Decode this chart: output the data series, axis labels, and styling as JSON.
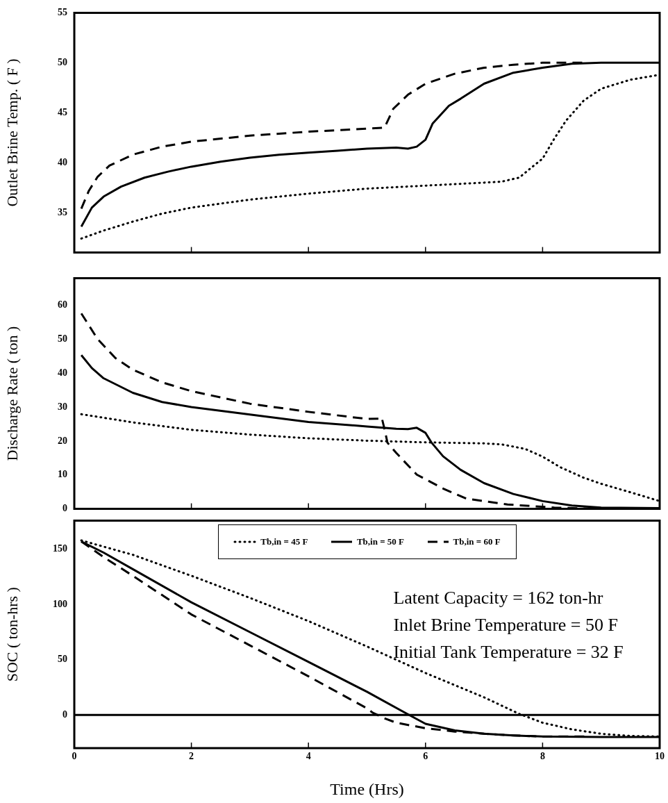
{
  "chart_data": [
    {
      "type": "line",
      "ylabel": "Outlet Brine Temp. ( F )",
      "xlim": [
        0,
        10
      ],
      "xticks": [
        0,
        2,
        4,
        6,
        8,
        10
      ],
      "ylim": [
        31,
        55
      ],
      "yticks": [
        35,
        40,
        45,
        50,
        55
      ],
      "tick_labels": "y",
      "grid": false,
      "legend": false,
      "series": [
        {
          "color": "#000000",
          "line_style": "dotted",
          "x": [
            0.12,
            0.5,
            1,
            1.5,
            2,
            3,
            4,
            5,
            6,
            7,
            7.3,
            7.6,
            7.85,
            8,
            8.2,
            8.4,
            8.7,
            9,
            9.5,
            10
          ],
          "values": [
            32.4,
            33.2,
            34.1,
            34.9,
            35.5,
            36.3,
            36.9,
            37.4,
            37.7,
            38.0,
            38.1,
            38.5,
            39.7,
            40.4,
            42.4,
            44.2,
            46.2,
            47.4,
            48.3,
            48.8
          ]
        },
        {
          "color": "#000000",
          "line_style": "solid",
          "x": [
            0.12,
            0.3,
            0.5,
            0.8,
            1.2,
            1.6,
            2,
            2.5,
            3,
            3.5,
            4,
            4.5,
            5,
            5.5,
            5.7,
            5.85,
            6,
            6.12,
            6.4,
            6.6,
            7,
            7.5,
            8,
            8.5,
            9,
            10
          ],
          "values": [
            33.6,
            35.5,
            36.6,
            37.6,
            38.5,
            39.1,
            39.6,
            40.1,
            40.5,
            40.8,
            41.0,
            41.2,
            41.4,
            41.5,
            41.4,
            41.6,
            42.3,
            43.9,
            45.7,
            46.4,
            47.9,
            49.0,
            49.5,
            49.9,
            50,
            50
          ]
        },
        {
          "color": "#000000",
          "line_style": "dashed",
          "x": [
            0.12,
            0.25,
            0.4,
            0.6,
            1,
            1.5,
            2,
            3,
            4,
            5,
            5.3,
            5.45,
            5.7,
            6,
            6.5,
            7,
            7.5,
            8,
            8.75
          ],
          "values": [
            35.4,
            37.2,
            38.6,
            39.7,
            40.8,
            41.6,
            42.1,
            42.7,
            43.1,
            43.4,
            43.5,
            45.4,
            46.8,
            47.9,
            48.9,
            49.5,
            49.8,
            50.0,
            50.0
          ]
        }
      ]
    },
    {
      "type": "line",
      "ylabel": "Discharge Rate ( ton )",
      "xlim": [
        0,
        10
      ],
      "xticks": [
        0,
        2,
        4,
        6,
        8,
        10
      ],
      "ylim": [
        0,
        68
      ],
      "yticks": [
        0,
        10,
        20,
        30,
        40,
        50,
        60
      ],
      "tick_labels": "y",
      "grid": false,
      "legend": false,
      "series": [
        {
          "color": "#000000",
          "line_style": "dotted",
          "x": [
            0.12,
            1,
            2,
            3,
            4,
            5,
            6,
            7,
            7.3,
            7.7,
            8,
            8.3,
            8.7,
            9,
            9.5,
            10
          ],
          "values": [
            27.9,
            25.5,
            23.3,
            21.9,
            20.8,
            20.1,
            19.6,
            19.3,
            19.0,
            17.7,
            15.4,
            12.3,
            9.2,
            7.4,
            4.9,
            2.3
          ]
        },
        {
          "color": "#000000",
          "line_style": "solid",
          "x": [
            0.12,
            0.3,
            0.5,
            1,
            1.5,
            2,
            3,
            4,
            5,
            5.5,
            5.7,
            5.85,
            6,
            6.1,
            6.3,
            6.6,
            7,
            7.5,
            8,
            8.5,
            9,
            10
          ],
          "values": [
            45.3,
            41.5,
            38.5,
            34.2,
            31.5,
            30.0,
            27.8,
            25.6,
            24.3,
            23.6,
            23.5,
            23.9,
            22.4,
            19.6,
            15.5,
            11.5,
            7.6,
            4.4,
            2.3,
            1.0,
            0.4,
            0.2
          ]
        },
        {
          "color": "#000000",
          "line_style": "dashed",
          "x": [
            0.12,
            0.4,
            0.7,
            1,
            1.5,
            2,
            3,
            4,
            5,
            5.2,
            5.25,
            5.3,
            5.35,
            5.5,
            5.85,
            6.3,
            6.7,
            7.4,
            8.2,
            8.9
          ],
          "values": [
            57.6,
            50,
            44.5,
            41,
            37.3,
            34.7,
            31.0,
            28.6,
            26.5,
            26.6,
            27.0,
            23.5,
            19.5,
            16.5,
            10.1,
            6.0,
            3.0,
            1.3,
            0.4,
            0.0
          ]
        }
      ]
    },
    {
      "type": "line",
      "ylabel": "SOC ( ton-hrs )",
      "xlabel": "Time (Hrs)",
      "xlim": [
        0,
        10
      ],
      "xticks": [
        0,
        2,
        4,
        6,
        8,
        10
      ],
      "ylim": [
        -30,
        176
      ],
      "yticks": [
        0,
        50,
        100,
        150
      ],
      "grid": false,
      "legend": "top",
      "ref_lines": [
        {
          "axis": "y",
          "value": 0
        }
      ],
      "annotations": [
        "Latent Capacity = 162 ton-hr",
        "Inlet Brine Temperature = 50 F",
        "Initial Tank Temperature = 32 F"
      ],
      "series": [
        {
          "name": "Tb,in = 45 F",
          "color": "#000000",
          "line_style": "dotted",
          "x": [
            0.12,
            1,
            2,
            3,
            4,
            5,
            6,
            7,
            7.6,
            8,
            8.5,
            9,
            9.5,
            10
          ],
          "values": [
            158,
            145,
            126,
            106,
            85,
            62,
            38,
            16,
            1,
            -7,
            -13,
            -17,
            -19,
            -19.5
          ]
        },
        {
          "name": "Tb,in = 50 F",
          "color": "#000000",
          "line_style": "solid",
          "x": [
            0.12,
            0.5,
            1,
            2,
            3,
            4,
            5,
            5.72,
            6,
            6.5,
            7,
            7.5,
            8,
            9,
            10
          ],
          "values": [
            157,
            147,
            132,
            102,
            75,
            48,
            21,
            0,
            -8,
            -14,
            -17,
            -18.5,
            -19.5,
            -20,
            -20
          ]
        },
        {
          "name": "Tb,in = 60 F",
          "color": "#000000",
          "line_style": "dashed",
          "x": [
            0.12,
            0.5,
            1,
            2,
            3,
            4,
            5,
            5.1,
            5.3,
            5.5,
            6,
            6.5,
            7,
            7.5,
            8,
            8.8
          ],
          "values": [
            157,
            143,
            126,
            91,
            63,
            35,
            6,
            2,
            -3,
            -7,
            -12,
            -15,
            -17,
            -18.5,
            -19.5,
            -19.5
          ]
        }
      ]
    }
  ]
}
